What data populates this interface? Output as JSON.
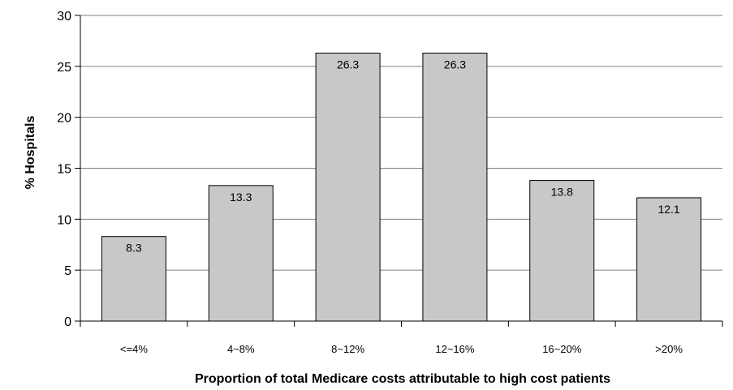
{
  "chart_data": {
    "type": "bar",
    "title": "",
    "xlabel": "Proportion of total Medicare costs attributable to high cost patients",
    "ylabel": "% Hospitals",
    "categories": [
      "<=4%",
      "4~8%",
      "8~12%",
      "12~16%",
      "16~20%",
      ">20%"
    ],
    "values": [
      8.3,
      13.3,
      26.3,
      26.3,
      13.8,
      12.1
    ],
    "data_labels": [
      "8.3",
      "13.3",
      "26.3",
      "26.3",
      "13.8",
      "12.1"
    ],
    "ylim": [
      0,
      30
    ],
    "yticks": [
      "0",
      "5",
      "10",
      "15",
      "20",
      "25",
      "30"
    ],
    "grid": true,
    "legend": "none",
    "colors": {
      "bar_fill": "#c8c8c8",
      "bar_stroke": "#000000",
      "grid": "#808080"
    }
  }
}
